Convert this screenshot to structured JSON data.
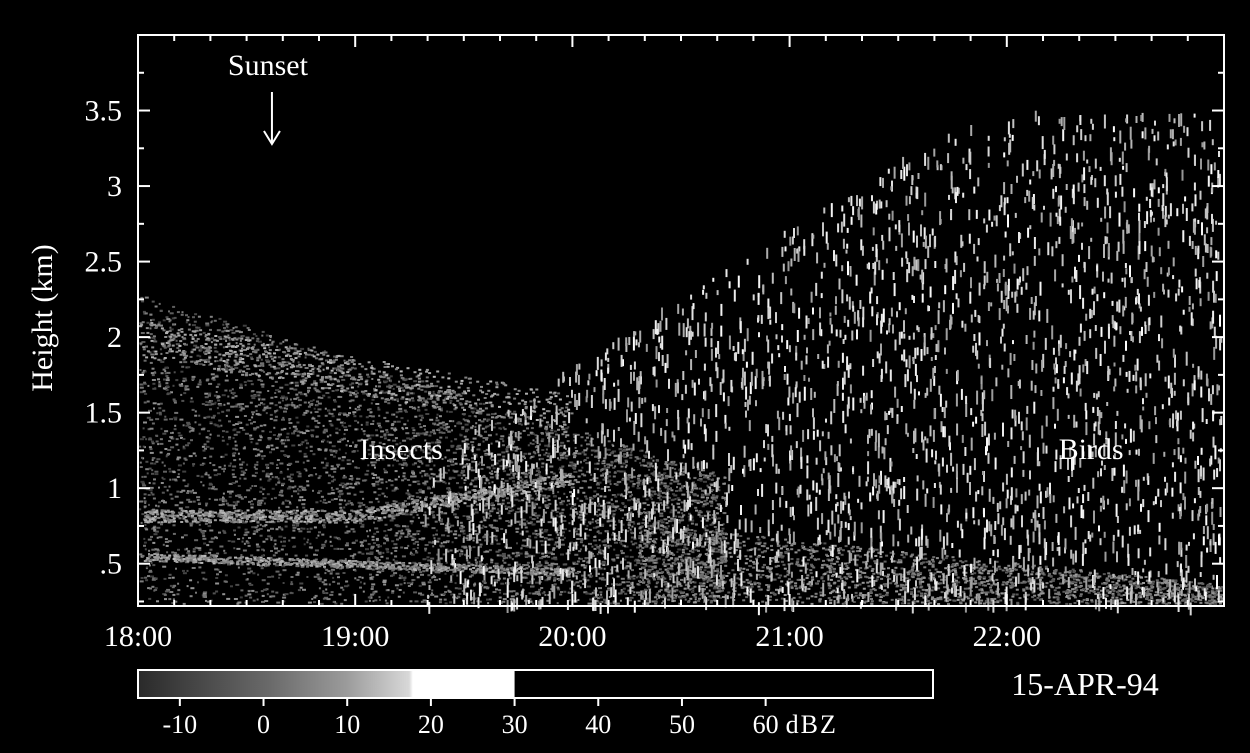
{
  "chart_data": {
    "type": "heatmap",
    "title": "",
    "xlabel": "",
    "ylabel": "Height (km)",
    "x_ticks": [
      "18:00",
      "19:00",
      "20:00",
      "21:00",
      "22:00"
    ],
    "x_range": [
      "18:00",
      "23:00"
    ],
    "y_ticks": [
      ".5",
      "1",
      "1.5",
      "2",
      "2.5",
      "3",
      "3.5"
    ],
    "y_range": [
      0.22,
      4.0
    ],
    "date": "15-APR-94",
    "colorbar": {
      "unit": "dBZ",
      "tick_labels": [
        "-10",
        "0",
        "10",
        "20",
        "30",
        "40",
        "50",
        "60"
      ],
      "range": [
        -15,
        80
      ],
      "filled_to": 30
    },
    "annotations": [
      {
        "text": "Sunset",
        "time": "18:37",
        "arrow": true
      },
      {
        "text": "Insects",
        "time": "19:00",
        "height": 1.3
      },
      {
        "text": "Birds",
        "time": "22:15",
        "height": 1.3
      }
    ],
    "colors": {
      "background": "#000000",
      "frame": "#ffffff",
      "echo": "#ffffff"
    }
  }
}
